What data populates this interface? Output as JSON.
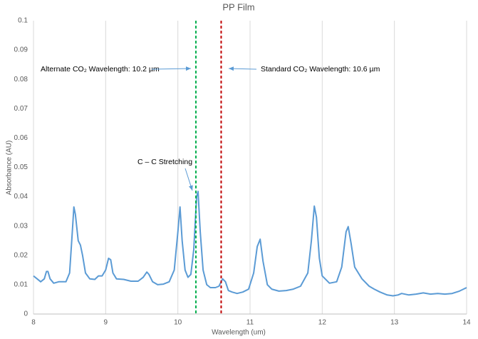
{
  "chart_data": {
    "type": "line",
    "title": "PP Film",
    "x_label": "Wavelength (um)",
    "y_label": "Absorbance (AU)",
    "color": "#5b9bd5",
    "grid": "x",
    "x": [
      8.0,
      8.05,
      8.1,
      8.15,
      8.18,
      8.2,
      8.23,
      8.28,
      8.35,
      8.45,
      8.5,
      8.53,
      8.56,
      8.58,
      8.62,
      8.65,
      8.68,
      8.72,
      8.78,
      8.85,
      8.9,
      8.95,
      9.0,
      9.04,
      9.07,
      9.1,
      9.15,
      9.25,
      9.35,
      9.45,
      9.52,
      9.57,
      9.6,
      9.65,
      9.72,
      9.8,
      9.88,
      9.95,
      10.0,
      10.03,
      10.06,
      10.1,
      10.14,
      10.18,
      10.22,
      10.26,
      10.28,
      10.31,
      10.35,
      10.4,
      10.45,
      10.52,
      10.57,
      10.62,
      10.66,
      10.7,
      10.75,
      10.82,
      10.9,
      10.98,
      11.05,
      11.1,
      11.14,
      11.18,
      11.24,
      11.3,
      11.4,
      11.5,
      11.6,
      11.7,
      11.8,
      11.85,
      11.89,
      11.92,
      11.96,
      12.0,
      12.1,
      12.2,
      12.27,
      12.33,
      12.36,
      12.4,
      12.45,
      12.55,
      12.65,
      12.72,
      12.8,
      12.9,
      12.98,
      13.05,
      13.1,
      13.2,
      13.3,
      13.4,
      13.5,
      13.6,
      13.7,
      13.8,
      13.9,
      14.0
    ],
    "values": [
      0.013,
      0.012,
      0.011,
      0.012,
      0.0145,
      0.0145,
      0.012,
      0.0105,
      0.011,
      0.011,
      0.014,
      0.025,
      0.0365,
      0.034,
      0.025,
      0.0235,
      0.02,
      0.014,
      0.012,
      0.0118,
      0.013,
      0.013,
      0.015,
      0.019,
      0.0185,
      0.014,
      0.012,
      0.0118,
      0.0112,
      0.0112,
      0.0125,
      0.0143,
      0.0135,
      0.011,
      0.01,
      0.0102,
      0.011,
      0.015,
      0.028,
      0.0365,
      0.025,
      0.015,
      0.0125,
      0.0135,
      0.022,
      0.04,
      0.0418,
      0.028,
      0.015,
      0.01,
      0.009,
      0.009,
      0.0095,
      0.012,
      0.011,
      0.008,
      0.0075,
      0.007,
      0.0075,
      0.0085,
      0.014,
      0.023,
      0.0255,
      0.018,
      0.01,
      0.0085,
      0.0078,
      0.008,
      0.0085,
      0.0095,
      0.014,
      0.025,
      0.0368,
      0.033,
      0.019,
      0.013,
      0.0105,
      0.011,
      0.016,
      0.028,
      0.0298,
      0.024,
      0.016,
      0.012,
      0.0095,
      0.0085,
      0.0075,
      0.0065,
      0.0062,
      0.0065,
      0.007,
      0.0065,
      0.0068,
      0.0072,
      0.0068,
      0.007,
      0.0068,
      0.007,
      0.0078,
      0.009
    ],
    "xlim": [
      8,
      14
    ],
    "xticks": [
      8,
      9,
      10,
      11,
      12,
      13,
      14
    ],
    "ylim": [
      0,
      0.1
    ],
    "yticks": [
      0,
      0.01,
      0.02,
      0.03,
      0.04,
      0.05,
      0.06,
      0.07,
      0.08,
      0.09,
      0.1
    ],
    "vlines": [
      {
        "x": 10.25,
        "color": "#00b050"
      },
      {
        "x": 10.6,
        "color": "#c00000"
      }
    ],
    "annotations": [
      "Alternate CO₂ Wavelength: 10.2 µm",
      "Standard CO₂ Wavelength: 10.6 µm",
      "C – C Stretching"
    ]
  }
}
